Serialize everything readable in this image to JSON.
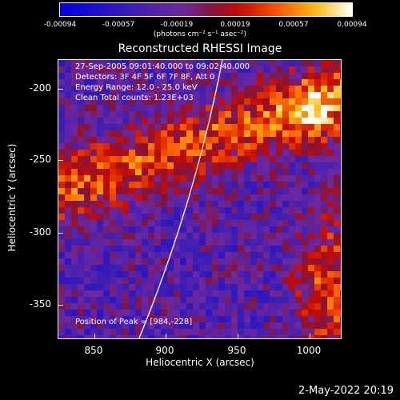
{
  "colorbar": {
    "ticks": [
      "-0.00094",
      "-0.00057",
      "-0.00019",
      "0.00019",
      "0.00057",
      "0.00094"
    ],
    "units": "(photons cm⁻² s⁻¹ asec⁻²)"
  },
  "title": "Reconstructed RHESSI Image",
  "info": {
    "line1": "27-Sep-2005 09:01:40.000 to 09:02:40.000",
    "line2": "Detectors: 3F 4F 5F 6F 7F 8F, Att 0",
    "line3": "Energy Range: 12.0 - 25.0 keV",
    "line4": "Clean    Total counts: 1.23E+03",
    "peak": "Position of Peak = [984,-228]"
  },
  "axes": {
    "xlabel": "Heliocentric X (arcsec)",
    "ylabel": "Heliocentric Y (arcsec)",
    "xticks": [
      "850",
      "900",
      "950",
      "1000"
    ],
    "yticks": [
      "-200",
      "-250",
      "-300",
      "-350"
    ]
  },
  "timestamp": "2-May-2022 20:19",
  "colors": {
    "background": "#000000",
    "text": "#ffffff",
    "limb": "#ffffff"
  }
}
